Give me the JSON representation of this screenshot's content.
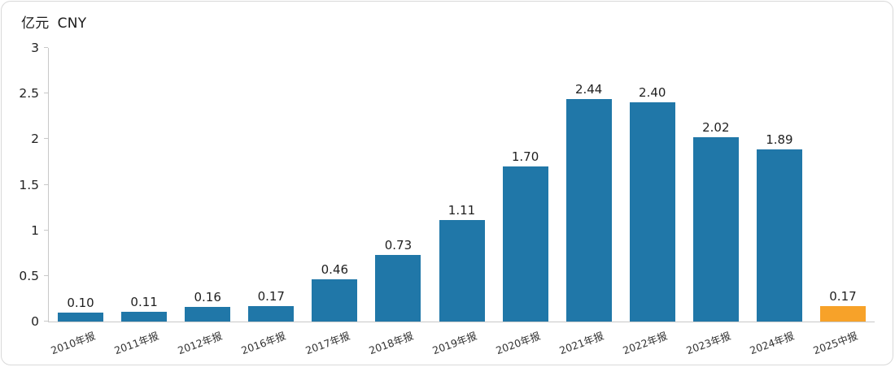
{
  "chart": {
    "unit_label_cn": "亿元",
    "unit_label_en": "CNY"
  },
  "chart_data": {
    "type": "bar",
    "title": "",
    "ylabel": "亿元 CNY",
    "categories": [
      "2010年报",
      "2011年报",
      "2012年报",
      "2016年报",
      "2017年报",
      "2018年报",
      "2019年报",
      "2020年报",
      "2021年报",
      "2022年报",
      "2023年报",
      "2024年报",
      "2025中报"
    ],
    "values": [
      0.1,
      0.11,
      0.16,
      0.17,
      0.46,
      0.73,
      1.11,
      1.7,
      2.44,
      2.4,
      2.02,
      1.89,
      0.17
    ],
    "value_labels": [
      "0.10",
      "0.11",
      "0.16",
      "0.17",
      "0.46",
      "0.73",
      "1.11",
      "1.70",
      "2.44",
      "2.40",
      "2.02",
      "1.89",
      "0.17"
    ],
    "ylim": [
      0,
      3
    ],
    "yticks": [
      0,
      0.5,
      1,
      1.5,
      2,
      2.5,
      3
    ],
    "ytick_labels": [
      "0",
      "0.5",
      "1",
      "1.5",
      "2",
      "2.5",
      "3"
    ],
    "bar_color": "#2077A8",
    "highlight_color": "#F7A229",
    "highlight_index": 12,
    "grid": false,
    "legend": false,
    "legend_position": "none"
  }
}
